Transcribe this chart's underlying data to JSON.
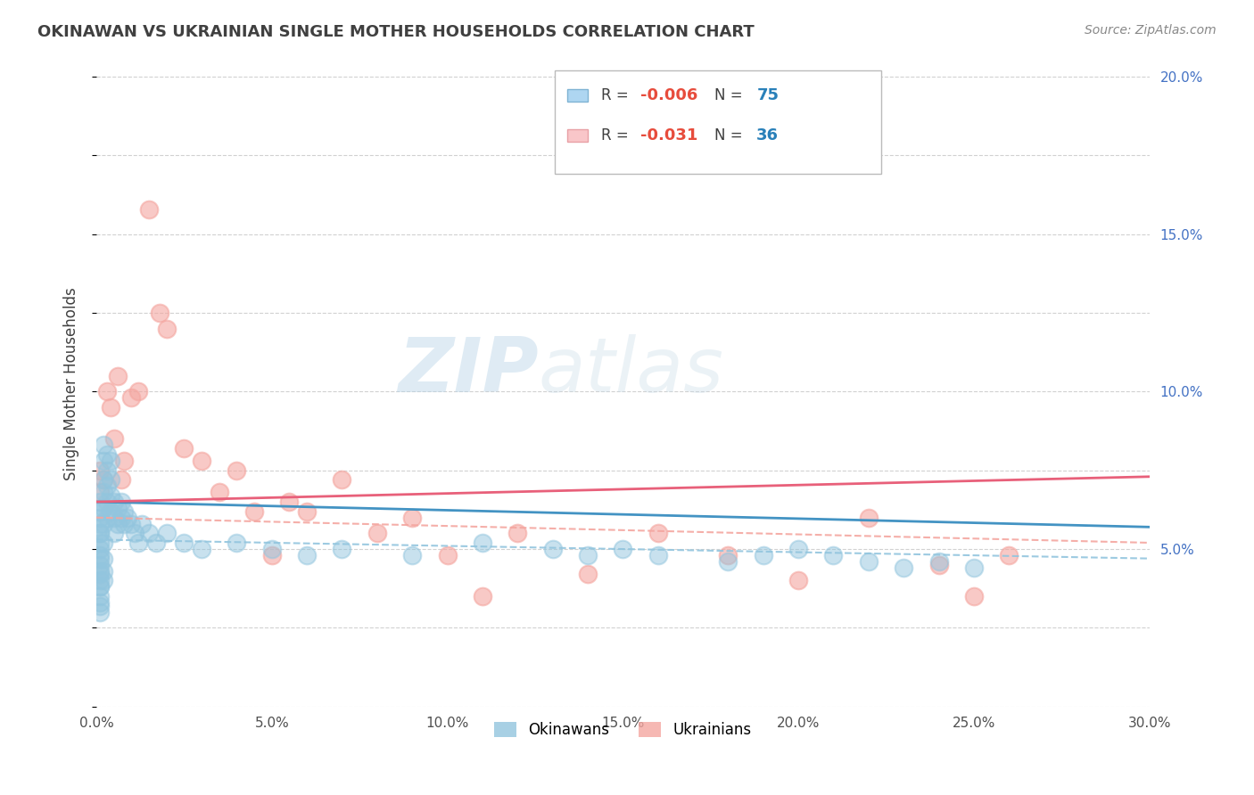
{
  "title": "OKINAWAN VS UKRAINIAN SINGLE MOTHER HOUSEHOLDS CORRELATION CHART",
  "source": "Source: ZipAtlas.com",
  "ylabel": "Single Mother Households",
  "xlim": [
    0.0,
    0.3
  ],
  "ylim": [
    0.0,
    0.205
  ],
  "xticks": [
    0.0,
    0.05,
    0.1,
    0.15,
    0.2,
    0.25,
    0.3
  ],
  "yticks_right": [
    0.05,
    0.1,
    0.15,
    0.2
  ],
  "legend_label1": "Okinawans",
  "legend_label2": "Ukrainians",
  "blue_color": "#92c5de",
  "pink_color": "#f4a6a0",
  "blue_line_color": "#4393c3",
  "pink_line_color": "#e8607a",
  "blue_dash_color": "#92c5de",
  "pink_dash_color": "#f4a6a0",
  "background_color": "#ffffff",
  "grid_color": "#cccccc",
  "title_color": "#404040",
  "source_color": "#888888",
  "watermark_zip": "ZIP",
  "watermark_atlas": "atlas",
  "okinawan_x": [
    0.001,
    0.001,
    0.001,
    0.001,
    0.001,
    0.001,
    0.001,
    0.001,
    0.001,
    0.001,
    0.001,
    0.001,
    0.001,
    0.001,
    0.001,
    0.001,
    0.001,
    0.001,
    0.001,
    0.001,
    0.002,
    0.002,
    0.002,
    0.002,
    0.002,
    0.002,
    0.002,
    0.002,
    0.002,
    0.002,
    0.003,
    0.003,
    0.003,
    0.003,
    0.003,
    0.004,
    0.004,
    0.004,
    0.004,
    0.005,
    0.005,
    0.005,
    0.006,
    0.006,
    0.007,
    0.007,
    0.008,
    0.008,
    0.009,
    0.01,
    0.011,
    0.012,
    0.013,
    0.015,
    0.017,
    0.02,
    0.025,
    0.03,
    0.04,
    0.05,
    0.06,
    0.07,
    0.09,
    0.11,
    0.13,
    0.14,
    0.15,
    0.16,
    0.18,
    0.19,
    0.2,
    0.21,
    0.22,
    0.23,
    0.24,
    0.25
  ],
  "okinawan_y": [
    0.033,
    0.038,
    0.04,
    0.042,
    0.045,
    0.047,
    0.05,
    0.052,
    0.055,
    0.058,
    0.06,
    0.062,
    0.065,
    0.055,
    0.048,
    0.043,
    0.038,
    0.035,
    0.032,
    0.03,
    0.04,
    0.043,
    0.047,
    0.052,
    0.058,
    0.063,
    0.068,
    0.072,
    0.078,
    0.083,
    0.06,
    0.065,
    0.07,
    0.075,
    0.08,
    0.062,
    0.067,
    0.072,
    0.078,
    0.055,
    0.06,
    0.065,
    0.058,
    0.063,
    0.06,
    0.065,
    0.058,
    0.062,
    0.06,
    0.058,
    0.055,
    0.052,
    0.058,
    0.055,
    0.052,
    0.055,
    0.052,
    0.05,
    0.052,
    0.05,
    0.048,
    0.05,
    0.048,
    0.052,
    0.05,
    0.048,
    0.05,
    0.048,
    0.046,
    0.048,
    0.05,
    0.048,
    0.046,
    0.044,
    0.046,
    0.044
  ],
  "ukrainian_x": [
    0.001,
    0.001,
    0.002,
    0.003,
    0.004,
    0.005,
    0.006,
    0.007,
    0.008,
    0.01,
    0.012,
    0.015,
    0.018,
    0.02,
    0.025,
    0.03,
    0.035,
    0.04,
    0.045,
    0.05,
    0.055,
    0.06,
    0.07,
    0.08,
    0.09,
    0.1,
    0.11,
    0.12,
    0.14,
    0.16,
    0.18,
    0.2,
    0.22,
    0.24,
    0.25,
    0.26
  ],
  "ukrainian_y": [
    0.068,
    0.075,
    0.072,
    0.1,
    0.095,
    0.085,
    0.105,
    0.072,
    0.078,
    0.098,
    0.1,
    0.158,
    0.125,
    0.12,
    0.082,
    0.078,
    0.068,
    0.075,
    0.062,
    0.048,
    0.065,
    0.062,
    0.072,
    0.055,
    0.06,
    0.048,
    0.035,
    0.055,
    0.042,
    0.055,
    0.048,
    0.04,
    0.06,
    0.045,
    0.035,
    0.048
  ],
  "blue_trendline": [
    0.065,
    0.057
  ],
  "pink_trendline": [
    0.065,
    0.073
  ],
  "blue_dashline": [
    0.053,
    0.047
  ],
  "pink_dashline": [
    0.06,
    0.052
  ]
}
